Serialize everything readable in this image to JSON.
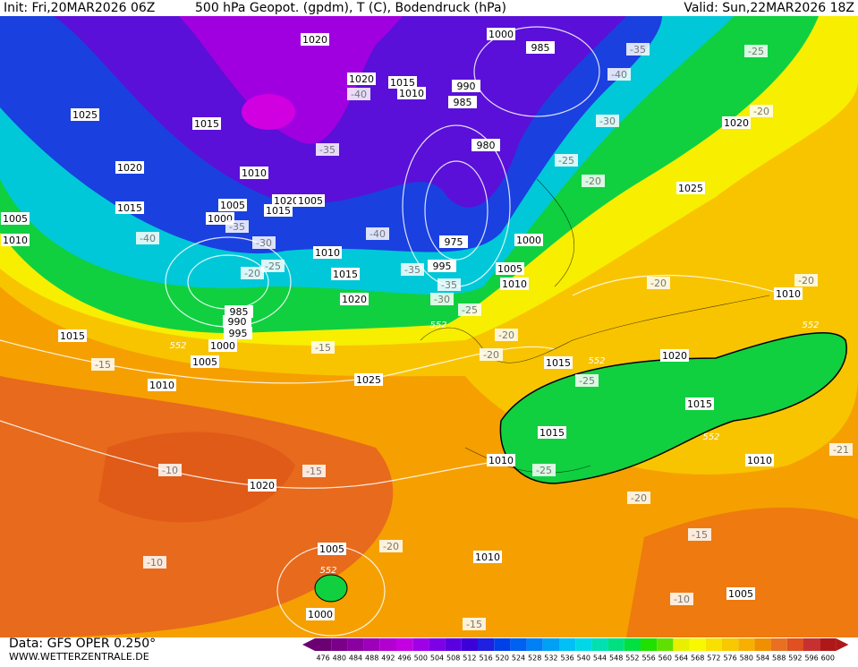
{
  "header": {
    "init": "Init: Fri,20MAR2026 06Z",
    "title": "500 hPa Geopot. (gpdm), T (C), Bodendruck (hPa)",
    "valid": "Valid: Sun,22MAR2026 18Z"
  },
  "footer": {
    "data": "Data: GFS OPER 0.250°",
    "site": "WWW.WETTERZENTRALE.DE"
  },
  "color_scale": {
    "values": [
      476,
      480,
      484,
      488,
      492,
      496,
      500,
      504,
      508,
      512,
      516,
      520,
      524,
      528,
      532,
      536,
      540,
      544,
      548,
      552,
      556,
      560,
      564,
      568,
      572,
      576,
      580,
      584,
      588,
      592,
      596,
      600
    ],
    "colors": [
      "#6a0072",
      "#7a0089",
      "#8b00a0",
      "#9c00b8",
      "#b200d0",
      "#c400e2",
      "#a000e6",
      "#7e00e6",
      "#5a00e0",
      "#3c00d8",
      "#2020e0",
      "#0040e8",
      "#0060f0",
      "#0080f5",
      "#00a0f5",
      "#00c0f5",
      "#00d8e8",
      "#00e0b0",
      "#00e080",
      "#00e040",
      "#20e000",
      "#60e000",
      "#e8f000",
      "#f8f800",
      "#f8e000",
      "#f8c800",
      "#f8b000",
      "#f09000",
      "#e87020",
      "#e05020",
      "#c83030",
      "#b01818"
    ]
  },
  "map": {
    "isobar_labels": [
      1020,
      1000,
      985,
      1020,
      1015,
      1010,
      990,
      985,
      1025,
      1015,
      980,
      1020,
      1010,
      1025,
      1005,
      1020,
      1005,
      1015,
      1015,
      1000,
      1005,
      1010,
      1000,
      975,
      995,
      1010,
      1015,
      1005,
      1010,
      1020,
      985,
      990,
      995,
      1000,
      1015,
      1005,
      1010,
      1025,
      1015,
      1020,
      1015,
      1015,
      1010,
      1010,
      1020,
      1005,
      1010,
      1005,
      1000,
      1010,
      1020
    ],
    "temperature_labels": [
      -40,
      -35,
      -40,
      -30,
      -25,
      -20,
      -25,
      -20,
      -35,
      -40,
      -35,
      -30,
      -25,
      -20,
      -40,
      -35,
      -35,
      -30,
      -25,
      -20,
      -20,
      -15,
      -15,
      -20,
      -20,
      -25,
      -20,
      -15,
      -10,
      -10,
      -20,
      -15,
      -10,
      -15,
      -25,
      -21
    ],
    "geopotential_labels": [
      552,
      552,
      552,
      552,
      552,
      552
    ]
  }
}
